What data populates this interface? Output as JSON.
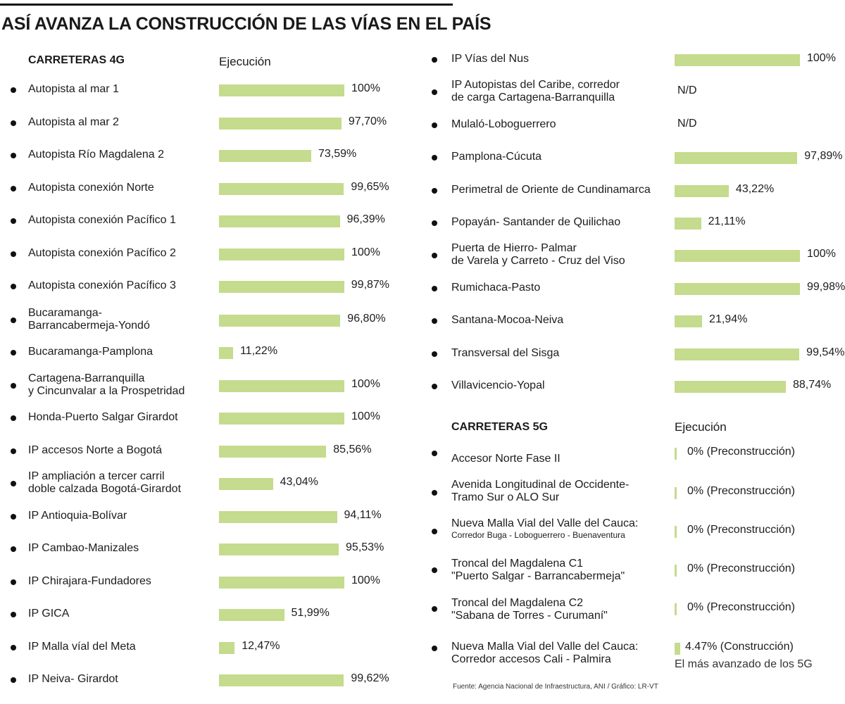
{
  "title": "ASÍ AVANZA LA CONSTRUCCIÓN DE LAS VÍAS EN EL PAÍS",
  "colors": {
    "bar": "#c5db8d",
    "text": "#1c1c1c"
  },
  "chart_data": [
    {
      "type": "bar",
      "orientation": "horizontal",
      "title": "CARRETERAS 4G",
      "value_header": "Ejecución",
      "unit": "%",
      "xlim": [
        0,
        100
      ],
      "items": [
        {
          "name": "Autopista al mar 1",
          "value": 100,
          "label": "100%"
        },
        {
          "name": "Autopista al mar 2",
          "value": 97.7,
          "label": "97,70%"
        },
        {
          "name": "Autopista Río Magdalena 2",
          "value": 73.59,
          "label": "73,59%"
        },
        {
          "name": "Autopista conexión Norte",
          "value": 99.65,
          "label": "99,65%"
        },
        {
          "name": "Autopista conexión Pacífico 1",
          "value": 96.39,
          "label": "96,39%"
        },
        {
          "name": "Autopista conexión Pacífico 2",
          "value": 100,
          "label": "100%"
        },
        {
          "name": "Autopista conexión Pacífico 3",
          "value": 99.87,
          "label": "99,87%"
        },
        {
          "name": "Bucaramanga-|Barrancabermeja-Yondó",
          "value": 96.8,
          "label": "96,80%"
        },
        {
          "name": "Bucaramanga-Pamplona",
          "value": 11.22,
          "label": "11,22%"
        },
        {
          "name": "Cartagena-Barranquilla|y Cincunvalar a la Prospetridad",
          "value": 100,
          "label": "100%"
        },
        {
          "name": "Honda-Puerto Salgar Girardot",
          "value": 100,
          "label": "100%"
        },
        {
          "name": "IP accesos Norte a Bogotá",
          "value": 85.56,
          "label": "85,56%"
        },
        {
          "name": "IP ampliación a tercer carril|doble calzada Bogotá-Girardot",
          "value": 43.04,
          "label": "43,04%"
        },
        {
          "name": "IP Antioquia-Bolívar",
          "value": 94.11,
          "label": "94,11%"
        },
        {
          "name": "IP Cambao-Manizales",
          "value": 95.53,
          "label": "95,53%"
        },
        {
          "name": "IP Chirajara-Fundadores",
          "value": 100,
          "label": "100%"
        },
        {
          "name": "IP GICA",
          "value": 51.99,
          "label": "51,99%"
        },
        {
          "name": "IP Malla víal del Meta",
          "value": 12.47,
          "label": "12,47%"
        },
        {
          "name": "IP Neiva- Girardot",
          "value": 99.62,
          "label": "99,62%"
        },
        {
          "name": "IP Vías del Nus",
          "value": 100,
          "label": "100%"
        },
        {
          "name": "IP Autopistas del Caribe, corredor|de carga Cartagena-Barranquilla",
          "value": null,
          "label": "N/D"
        },
        {
          "name": "Mulaló-Loboguerrero",
          "value": null,
          "label": "N/D"
        },
        {
          "name": "Pamplona-Cúcuta",
          "value": 97.89,
          "label": "97,89%"
        },
        {
          "name": "Perimetral de Oriente de Cundinamarca",
          "value": 43.22,
          "label": "43,22%"
        },
        {
          "name": "Popayán- Santander de Quilichao",
          "value": 21.11,
          "label": "21,11%"
        },
        {
          "name": "Puerta de Hierro- Palmar|de Varela y Carreto - Cruz del Viso",
          "value": 100,
          "label": "100%"
        },
        {
          "name": "Rumichaca-Pasto",
          "value": 99.98,
          "label": "99,98%"
        },
        {
          "name": "Santana-Mocoa-Neiva",
          "value": 21.94,
          "label": "21,94%"
        },
        {
          "name": "Transversal del Sisga",
          "value": 99.54,
          "label": "99,54%"
        },
        {
          "name": "Villavicencio-Yopal",
          "value": 88.74,
          "label": "88,74%"
        }
      ]
    },
    {
      "type": "bar",
      "orientation": "horizontal",
      "title": "CARRETERAS 5G",
      "value_header": "Ejecución",
      "unit": "%",
      "xlim": [
        0,
        100
      ],
      "items": [
        {
          "name": "Accesor Norte Fase II",
          "value": 0,
          "label": "0% (Preconstrucción)"
        },
        {
          "name": "Avenida Longitudinal de Occidente-|Tramo Sur o ALO Sur",
          "value": 0,
          "label": "0% (Preconstrucción)"
        },
        {
          "name": "Nueva Malla Vial del Valle del Cauca:|Corredor Buga - Loboguerrero - Buenaventura",
          "value": 0,
          "label": "0% (Preconstrucción)"
        },
        {
          "name": "Troncal del Magdalena C1|\"Puerto Salgar - Barrancabermeja\"",
          "value": 0,
          "label": "0% (Preconstrucción)"
        },
        {
          "name": "Troncal del Magdalena C2|\"Sabana de Torres - Curumaní\"",
          "value": 0,
          "label": "0% (Preconstrucción)"
        },
        {
          "name": "Nueva Malla Vial del Valle del Cauca:|Corredor accesos Cali - Palmira",
          "value": 4.47,
          "label": "4.47% (Construcción)",
          "note": "El más avanzado de los 5G"
        }
      ]
    }
  ],
  "source": "Fuente: Agencia Nacional de Infraestructura, ANI / Gráfico: LR-VT"
}
